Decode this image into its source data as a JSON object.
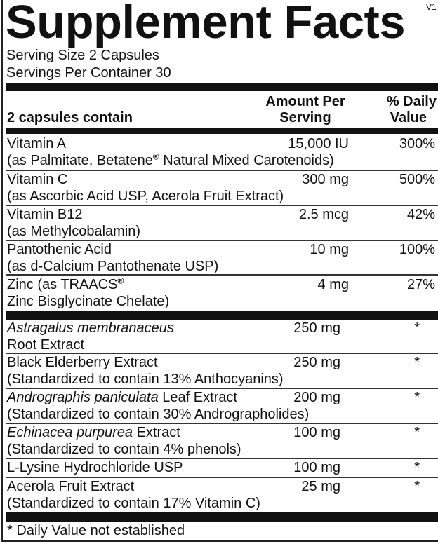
{
  "title": "Supplement Facts",
  "version": "V1",
  "serving_size": "Serving Size 2 Capsules",
  "servings_per_container": "Servings Per Container 30",
  "header": {
    "contain": "2 capsules contain",
    "amount_1": "Amount Per",
    "amount_2": "Serving",
    "dv_1": "% Daily",
    "dv_2": "Value"
  },
  "vitamins": [
    {
      "name": "Vitamin A",
      "sub_a": "(as Palmitate, Betatene",
      "reg": "®",
      "sub_b": " Natural Mixed Carotenoids)",
      "amount": "15,000 IU",
      "dv": "300%"
    },
    {
      "name": "Vitamin C",
      "sub": "(as Ascorbic Acid USP, Acerola Fruit Extract)",
      "amount": "300 mg",
      "dv": "500%"
    },
    {
      "name": "Vitamin B12",
      "sub": "(as Methylcobalamin)",
      "amount": "2.5 mcg",
      "dv": "42%"
    },
    {
      "name": "Pantothenic Acid",
      "sub": "(as d-Calcium Pantothenate USP)",
      "amount": "10 mg",
      "dv": "100%"
    },
    {
      "name": "Zinc (as TRAACS",
      "reg": "®",
      "sub": "Zinc Bisglycinate Chelate)",
      "amount": "4 mg",
      "dv": "27%"
    }
  ],
  "others": [
    {
      "italic": "Astragalus membranaceus",
      "name": "",
      "sub": "Root Extract",
      "amount": "250 mg",
      "dv": "*"
    },
    {
      "italic": "",
      "name": "Black Elderberry Extract",
      "sub": "(Standardized to contain 13% Anthocyanins)",
      "amount": "250 mg",
      "dv": "*"
    },
    {
      "italic": "Andrographis paniculata",
      "name": " Leaf Extract",
      "sub": "(Standardized to contain 30% Andrographolides)",
      "amount": "200 mg",
      "dv": "*"
    },
    {
      "italic": "Echinacea purpurea",
      "name": " Extract",
      "sub": "(Standardized to contain 4% phenols)",
      "amount": "100 mg",
      "dv": "*"
    },
    {
      "italic": "",
      "name": "L-Lysine Hydrochloride USP",
      "sub": "",
      "amount": "100 mg",
      "dv": "*"
    },
    {
      "italic": "",
      "name": "Acerola Fruit Extract",
      "sub": "(Standardized to contain 17% Vitamin C)",
      "amount": "25 mg",
      "dv": "*"
    }
  ],
  "footnote": "* Daily Value not established"
}
